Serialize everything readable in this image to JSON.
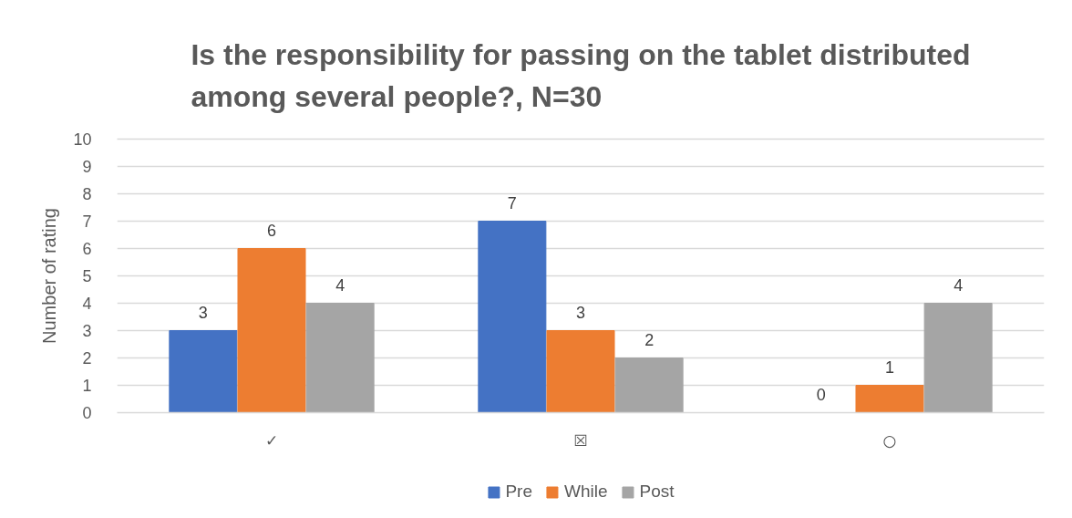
{
  "chart_data": {
    "type": "bar",
    "title": "Is the responsibility for passing on the tablet distributed among several people?, N=30",
    "ylabel": "Number of rating",
    "categories": [
      "✓",
      "☒",
      "○"
    ],
    "series": [
      {
        "name": "Pre",
        "color": "#4472c4",
        "values": [
          3,
          7,
          0
        ]
      },
      {
        "name": "While",
        "color": "#ed7d31",
        "values": [
          6,
          3,
          1
        ]
      },
      {
        "name": "Post",
        "color": "#a5a5a5",
        "values": [
          4,
          2,
          4
        ]
      }
    ],
    "ylim": [
      0,
      10
    ],
    "yticks": [
      0,
      1,
      2,
      3,
      4,
      5,
      6,
      7,
      8,
      9,
      10
    ],
    "grid": "y",
    "legend": "bottom",
    "data_labels": true
  }
}
